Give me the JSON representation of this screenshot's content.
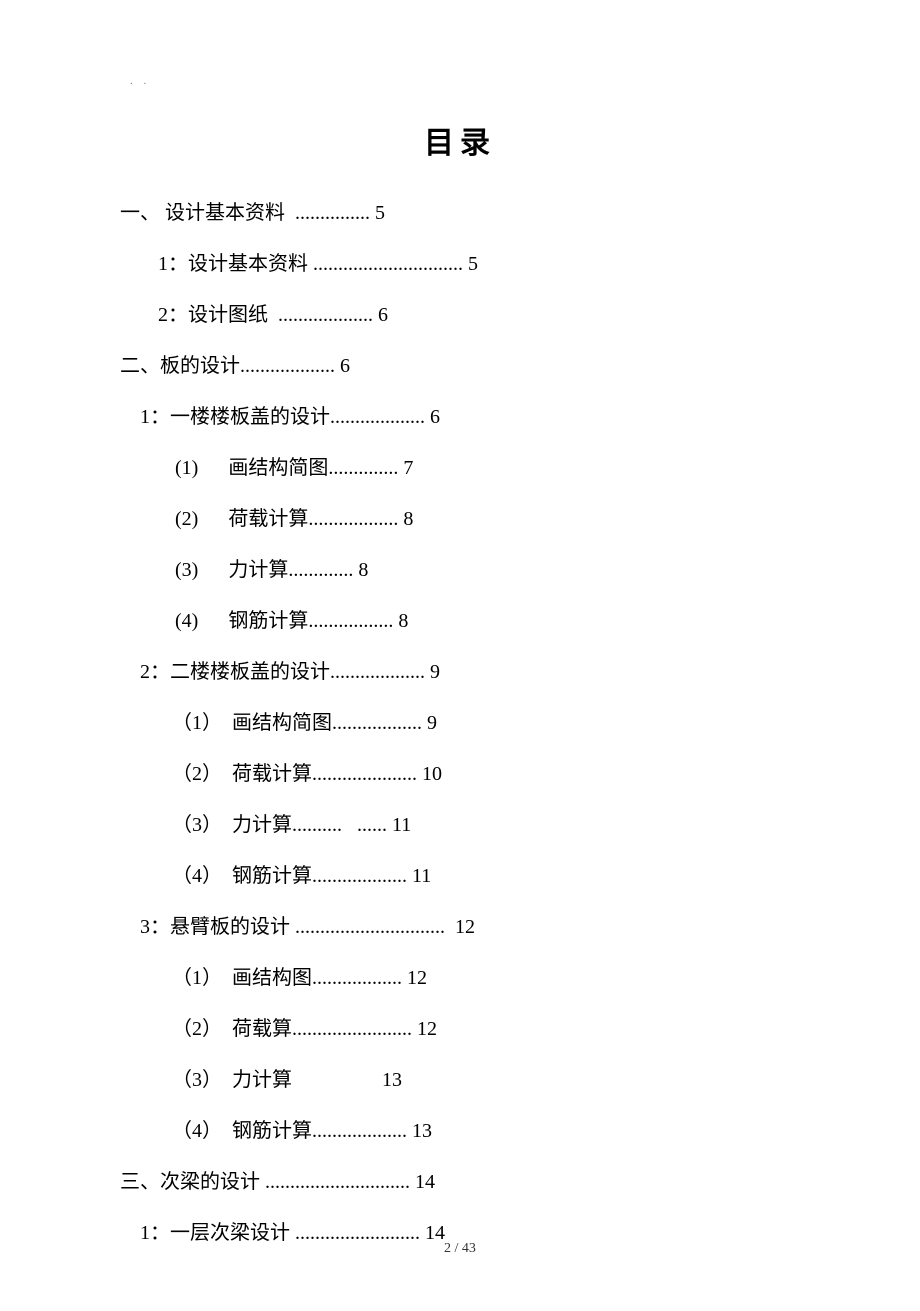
{
  "corner_mark": ". .",
  "title": "目录",
  "toc": [
    {
      "cls": "level-1",
      "text": "一、 设计基本资料  ............... 5"
    },
    {
      "cls": "level-2",
      "text": "1：设计基本资料 .............................. 5"
    },
    {
      "cls": "level-2",
      "text": "2：设计图纸  ................... 6"
    },
    {
      "cls": "level-1",
      "text": "二、板的设计................... 6"
    },
    {
      "cls": "level-2b",
      "text": "1：一楼楼板盖的设计................... 6"
    },
    {
      "cls": "level-3",
      "text": "(1)      画结构简图.............. 7"
    },
    {
      "cls": "level-3",
      "text": "(2)      荷载计算.................. 8"
    },
    {
      "cls": "level-3",
      "text": "(3)      力计算............. 8"
    },
    {
      "cls": "level-3",
      "text": "(4)      钢筋计算................. 8"
    },
    {
      "cls": "level-2b",
      "text": "2：二楼楼板盖的设计................... 9"
    },
    {
      "cls": "level-3b",
      "text": "（1）  画结构简图.................. 9"
    },
    {
      "cls": "level-3b",
      "text": "（2）  荷载计算..................... 10"
    },
    {
      "cls": "level-3b",
      "text": "（3）  力计算..........   ...... 11"
    },
    {
      "cls": "level-3b",
      "text": "（4）  钢筋计算................... 11"
    },
    {
      "cls": "level-2b",
      "text": "3：悬臂板的设计 ..............................  12"
    },
    {
      "cls": "level-3b",
      "text": "（1）  画结构图.................. 12"
    },
    {
      "cls": "level-3b",
      "text": "（2）  荷载算........................ 12"
    },
    {
      "cls": "level-3b",
      "text": "（3）  力计算                  13"
    },
    {
      "cls": "level-3b",
      "text": "（4）  钢筋计算................... 13"
    },
    {
      "cls": "level-1",
      "text": "三、次梁的设计 ............................. 14"
    },
    {
      "cls": "level-2b",
      "text": "1：一层次梁设计 ......................... 14"
    }
  ],
  "footer": "2 / 43",
  "colors": {
    "background": "#ffffff",
    "text": "#000000",
    "corner": "#888888",
    "footer": "#333333"
  },
  "typography": {
    "title_fontsize": 30,
    "body_fontsize": 20,
    "footer_fontsize": 14,
    "font_family": "SimSun"
  }
}
